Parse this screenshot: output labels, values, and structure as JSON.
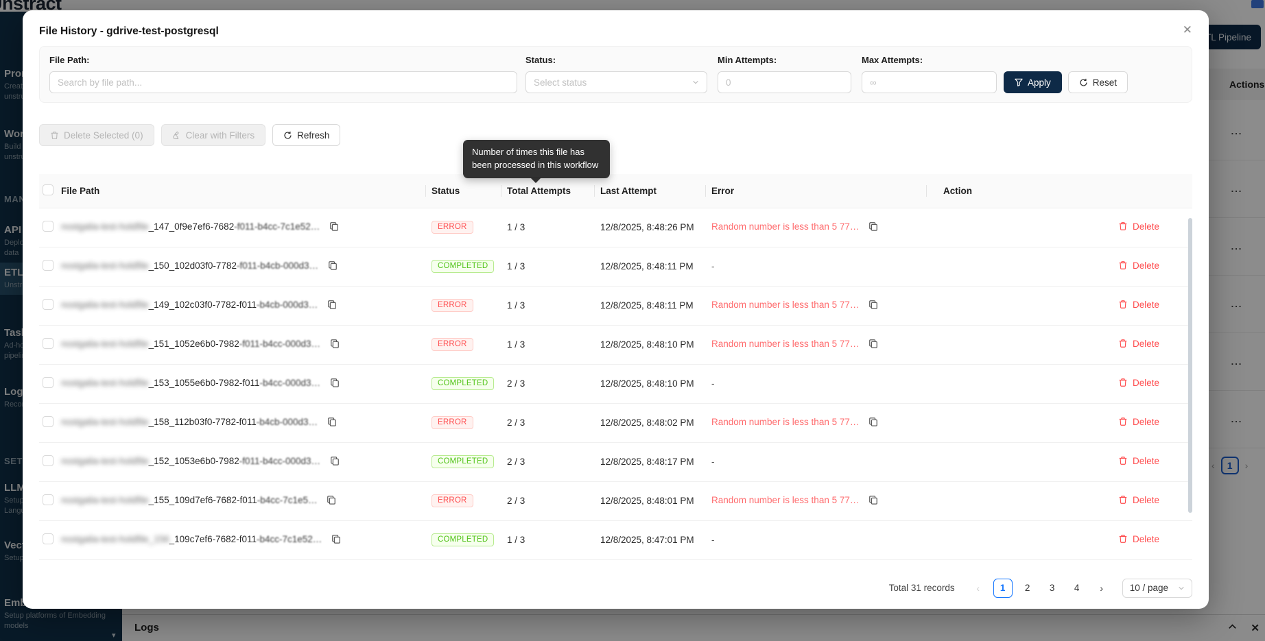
{
  "background": {
    "logo": "Unstract",
    "topbar_button": "+ ETL Pipeline",
    "sidebar": {
      "entries": [
        {
          "type": "item",
          "label": "Prompt Studio",
          "sub": "Create structured data from unstructured documents"
        },
        {
          "type": "item",
          "label": "Workflows",
          "sub": "Build no-code workflows for unstructured data"
        },
        {
          "type": "heading",
          "label": "MANAGE"
        },
        {
          "type": "item",
          "label": "API Deployments",
          "sub": "Deploy APIs for unstructured data"
        },
        {
          "type": "item",
          "label": "ETL Pipelines",
          "sub": "Unstructured data ETL pipelines",
          "active": true
        },
        {
          "type": "item",
          "label": "Task Pipelines",
          "sub": "Ad-hoc unstructured data pipelines"
        },
        {
          "type": "item",
          "label": "Logs",
          "sub": "Records and monitoring"
        },
        {
          "type": "heading",
          "label": "SETTINGS"
        },
        {
          "type": "item",
          "label": "LLMs",
          "sub": "Setup platforms of Large Language models"
        },
        {
          "type": "item",
          "label": "Vector DBs",
          "sub": "Setup platforms of Vector DBs"
        },
        {
          "type": "item",
          "label": "Embedding",
          "sub": "Setup platforms of Embedding models"
        }
      ]
    },
    "bg_table": {
      "header": "Actions",
      "row_ellipsis": "...",
      "row_count": 6,
      "pagination_page": "1",
      "prev": "‹",
      "next": "›"
    },
    "logs_bar": {
      "title": "Logs",
      "close": "✕"
    }
  },
  "modal": {
    "title": "File History - gdrive-test-postgresql",
    "close": "✕",
    "filters": {
      "file_path_label": "File Path:",
      "file_path_placeholder": "Search by file path...",
      "status_label": "Status:",
      "status_placeholder": "Select status",
      "min_label": "Min Attempts:",
      "min_placeholder": "0",
      "max_label": "Max Attempts:",
      "max_placeholder": "∞",
      "apply_label": "Apply",
      "reset_label": "Reset"
    },
    "actions": {
      "delete_selected": "Delete Selected (0)",
      "clear_with_filters": "Clear with Filters",
      "refresh": "Refresh"
    },
    "tooltip": "Number of times this file has been processed in this workflow",
    "table": {
      "columns": [
        "File Path",
        "Status",
        "Total Attempts",
        "Last Attempt",
        "Error",
        "Action"
      ],
      "rows": [
        {
          "path_redacted": "nostgalia-test-holdfile",
          "path_mid": "_147_0f9e7ef6-7682",
          "path_tail": "-f011-b4cc-7c1e52…",
          "status": "ERROR",
          "attempts": "1 / 3",
          "last_attempt": "12/8/2025, 8:48:26 PM",
          "error": "Random number is less than 5 77…",
          "action": "Delete"
        },
        {
          "path_redacted": "nostgalia-test-holdfile",
          "path_mid": "_150_102d03f0-7782",
          "path_tail": "-f011-b4cb-000d3…",
          "status": "COMPLETED",
          "attempts": "1 / 3",
          "last_attempt": "12/8/2025, 8:48:11 PM",
          "error": "-",
          "action": "Delete"
        },
        {
          "path_redacted": "nostgalia-test-holdfile",
          "path_mid": "_149_102c03f0-7782-f011",
          "path_tail": "-b4cb-000d3…",
          "status": "ERROR",
          "attempts": "1 / 3",
          "last_attempt": "12/8/2025, 8:48:11 PM",
          "error": "Random number is less than 5 77…",
          "action": "Delete"
        },
        {
          "path_redacted": "nostgalia-test-holdfile",
          "path_mid": "_151_1052e6b0-7982",
          "path_tail": "-f011-b4cc-000d3…",
          "status": "ERROR",
          "attempts": "1 / 3",
          "last_attempt": "12/8/2025, 8:48:10 PM",
          "error": "Random number is less than 5 77…",
          "action": "Delete"
        },
        {
          "path_redacted": "nostgalia-test-holdfile",
          "path_mid": "_153_1055e6b0-7982-f011",
          "path_tail": "-b4cc-000d3…",
          "status": "COMPLETED",
          "attempts": "2 / 3",
          "last_attempt": "12/8/2025, 8:48:10 PM",
          "error": "-",
          "action": "Delete"
        },
        {
          "path_redacted": "nostgalia-test-holdfile",
          "path_mid": "_158_112b03f0-7782-f011",
          "path_tail": "-b4cb-000d3…",
          "status": "ERROR",
          "attempts": "2 / 3",
          "last_attempt": "12/8/2025, 8:48:02 PM",
          "error": "Random number is less than 5 77…",
          "action": "Delete"
        },
        {
          "path_redacted": "nostgalia-test-holdfile",
          "path_mid": "_152_1053e6b0-7982",
          "path_tail": "-f011-b4cc-000d3…",
          "status": "COMPLETED",
          "attempts": "2 / 3",
          "last_attempt": "12/8/2025, 8:48:17 PM",
          "error": "-",
          "action": "Delete"
        },
        {
          "path_redacted": "nostgalia-test-holdfile",
          "path_mid": "_155_109d7ef6-7682-f011",
          "path_tail": "-b4cc-7c1e5…",
          "status": "ERROR",
          "attempts": "2 / 3",
          "last_attempt": "12/8/2025, 8:48:01 PM",
          "error": "Random number is less than 5 77…",
          "action": "Delete"
        },
        {
          "path_redacted": "nostgalia-test-holdfile_156",
          "path_mid": "_109c7ef6-7682-f011",
          "path_tail": "-b4cc-7c1e52…",
          "status": "COMPLETED",
          "attempts": "1 / 3",
          "last_attempt": "12/8/2025, 8:47:01 PM",
          "error": "-",
          "action": "Delete"
        }
      ]
    },
    "pagination": {
      "total_text": "Total 31 records",
      "prev": "‹",
      "next": "›",
      "pages": [
        "1",
        "2",
        "3",
        "4"
      ],
      "active_page": "1",
      "page_size": "10 / page"
    }
  },
  "colors": {
    "sidebar_navy": "#103049",
    "primary_navy": "#0e2a47",
    "error_red": "#ff4d4f",
    "success_green": "#52c41a",
    "active_page_blue": "#1677ff"
  }
}
